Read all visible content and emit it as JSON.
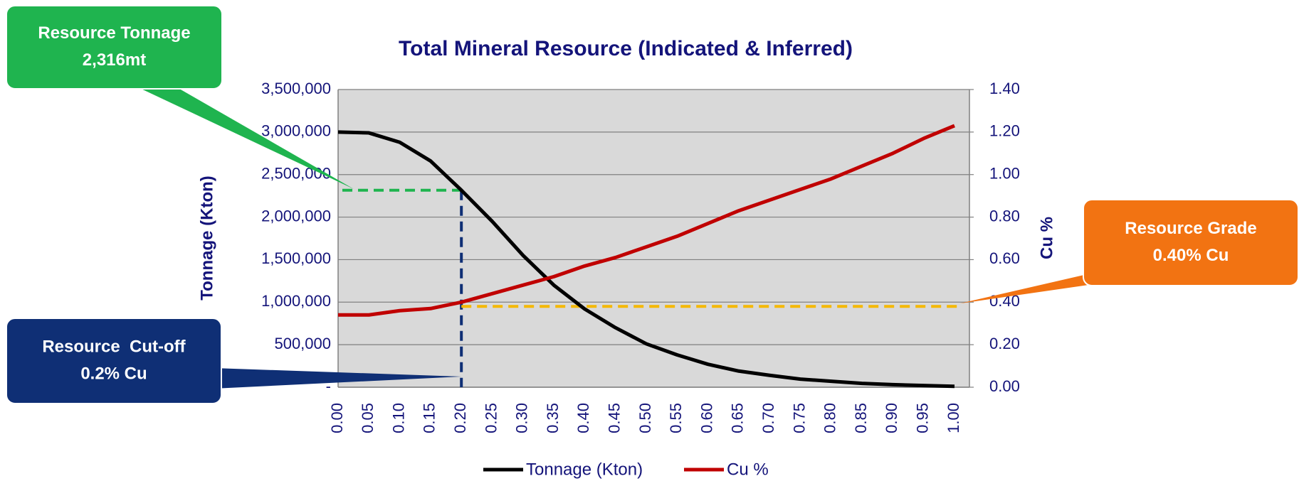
{
  "chart_data": {
    "type": "line",
    "title": "Total Mineral Resource (Indicated & Inferred)",
    "y_label": "Tonnage (Kton)",
    "y2_label": "Cu %",
    "categories": [
      "0.00",
      "0.05",
      "0.10",
      "0.15",
      "0.20",
      "0.25",
      "0.30",
      "0.35",
      "0.40",
      "0.45",
      "0.50",
      "0.55",
      "0.60",
      "0.65",
      "0.70",
      "0.75",
      "0.80",
      "0.85",
      "0.90",
      "0.95",
      "1.00"
    ],
    "series": [
      {
        "name": "Tonnage (Kton)",
        "color": "#000000",
        "axis": "y",
        "values": [
          3000000,
          2990000,
          2880000,
          2660000,
          2316000,
          1950000,
          1550000,
          1200000,
          920000,
          700000,
          510000,
          380000,
          270000,
          190000,
          140000,
          95000,
          70000,
          45000,
          30000,
          20000,
          10000
        ]
      },
      {
        "name": "Cu %",
        "color": "#c00000",
        "axis": "y2",
        "values": [
          0.34,
          0.34,
          0.36,
          0.37,
          0.4,
          0.44,
          0.48,
          0.52,
          0.57,
          0.61,
          0.66,
          0.71,
          0.77,
          0.83,
          0.88,
          0.93,
          0.98,
          1.04,
          1.1,
          1.17,
          1.23
        ]
      }
    ],
    "ylim": [
      0,
      3500000
    ],
    "yticks": [
      {
        "value": 0,
        "label": "-"
      },
      {
        "value": 500000,
        "label": "500,000"
      },
      {
        "value": 1000000,
        "label": "1,000,000"
      },
      {
        "value": 1500000,
        "label": "1,500,000"
      },
      {
        "value": 2000000,
        "label": "2,000,000"
      },
      {
        "value": 2500000,
        "label": "2,500,000"
      },
      {
        "value": 3000000,
        "label": "3,000,000"
      },
      {
        "value": 3500000,
        "label": "3,500,000"
      }
    ],
    "y2lim": [
      0,
      1.4
    ],
    "y2ticks": [
      {
        "value": 0,
        "label": "0.00"
      },
      {
        "value": 0.2,
        "label": "0.20"
      },
      {
        "value": 0.4,
        "label": "0.40"
      },
      {
        "value": 0.6,
        "label": "0.60"
      },
      {
        "value": 0.8,
        "label": "0.80"
      },
      {
        "value": 1,
        "label": "1.00"
      },
      {
        "value": 1.2,
        "label": "1.20"
      },
      {
        "value": 1.4,
        "label": "1.40"
      }
    ],
    "grid": true,
    "legend": "bottom",
    "annotations": [
      {
        "lines": [
          "Resource Tonnage",
          "2,316mt"
        ],
        "color": "#1fb44f",
        "y": 2316000,
        "x": 0.2
      },
      {
        "lines": [
          "Resource  Cut-off",
          "0.2% Cu"
        ],
        "color": "#0f2f75",
        "x": 0.2
      },
      {
        "lines": [
          "Resource Grade",
          "0.40% Cu"
        ],
        "color": "#f27312",
        "y2": 0.38
      }
    ]
  }
}
